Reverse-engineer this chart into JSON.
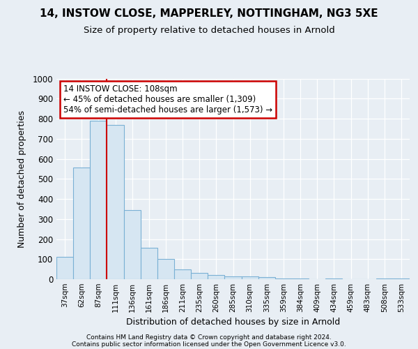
{
  "title1": "14, INSTOW CLOSE, MAPPERLEY, NOTTINGHAM, NG3 5XE",
  "title2": "Size of property relative to detached houses in Arnold",
  "xlabel": "Distribution of detached houses by size in Arnold",
  "ylabel": "Number of detached properties",
  "categories": [
    "37sqm",
    "62sqm",
    "87sqm",
    "111sqm",
    "136sqm",
    "161sqm",
    "186sqm",
    "211sqm",
    "235sqm",
    "260sqm",
    "285sqm",
    "310sqm",
    "335sqm",
    "359sqm",
    "384sqm",
    "409sqm",
    "434sqm",
    "459sqm",
    "483sqm",
    "508sqm",
    "533sqm"
  ],
  "values": [
    110,
    555,
    790,
    770,
    345,
    155,
    100,
    50,
    30,
    20,
    15,
    15,
    10,
    5,
    5,
    0,
    5,
    0,
    0,
    5,
    5
  ],
  "bar_color": "#d6e6f2",
  "bar_edge_color": "#7ab0d4",
  "vline_x_index": 3,
  "vline_color": "#cc0000",
  "annotation_text": "14 INSTOW CLOSE: 108sqm\n← 45% of detached houses are smaller (1,309)\n54% of semi-detached houses are larger (1,573) →",
  "annotation_box_color": "#ffffff",
  "annotation_box_edge": "#cc0000",
  "ylim": [
    0,
    1000
  ],
  "yticks": [
    0,
    100,
    200,
    300,
    400,
    500,
    600,
    700,
    800,
    900,
    1000
  ],
  "footer1": "Contains HM Land Registry data © Crown copyright and database right 2024.",
  "footer2": "Contains public sector information licensed under the Open Government Licence v3.0.",
  "bg_color": "#e8eef4",
  "plot_bg_color": "#e8eef4"
}
